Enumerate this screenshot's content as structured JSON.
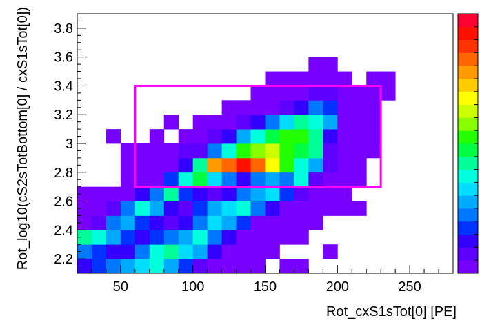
{
  "chart_data": {
    "type": "heatmap",
    "xlabel": "Rot_cxS1sTot[0]  [PE]",
    "ylabel": "Rot_log10(cS2sTotBottom[0] / cxS1sTot[0])",
    "xlim": [
      20,
      280
    ],
    "ylim": [
      2.1,
      3.9
    ],
    "x_ticks": [
      50,
      100,
      150,
      200,
      250
    ],
    "y_ticks": [
      2.2,
      2.4,
      2.6,
      2.8,
      3.0,
      3.2,
      3.4,
      3.6,
      3.8
    ],
    "x_tick_labels": [
      "50",
      "100",
      "150",
      "200",
      "250"
    ],
    "y_tick_labels": [
      "2.2",
      "2.4",
      "2.6",
      "2.8",
      "3",
      "3.2",
      "3.4",
      "3.6",
      "3.8"
    ],
    "bin_width_x": 10,
    "bin_width_y": 0.1,
    "x_bin_start": 20,
    "y_bin_start": 2.1,
    "levels": 20,
    "cells": [
      [
        20,
        2.1,
        3
      ],
      [
        30,
        2.1,
        4
      ],
      [
        40,
        2.1,
        5
      ],
      [
        50,
        2.1,
        6
      ],
      [
        60,
        2.1,
        7
      ],
      [
        70,
        2.1,
        8
      ],
      [
        80,
        2.1,
        6
      ],
      [
        90,
        2.1,
        4
      ],
      [
        100,
        2.1,
        2
      ],
      [
        110,
        2.1,
        1
      ],
      [
        120,
        2.1,
        1
      ],
      [
        130,
        2.1,
        1
      ],
      [
        140,
        2.1,
        1
      ],
      [
        160,
        2.1,
        1
      ],
      [
        170,
        2.1,
        1
      ],
      [
        20,
        2.2,
        5
      ],
      [
        30,
        2.2,
        4
      ],
      [
        40,
        2.2,
        3
      ],
      [
        50,
        2.2,
        3
      ],
      [
        60,
        2.2,
        5
      ],
      [
        70,
        2.2,
        8
      ],
      [
        80,
        2.2,
        9
      ],
      [
        90,
        2.2,
        7
      ],
      [
        100,
        2.2,
        6
      ],
      [
        110,
        2.2,
        3
      ],
      [
        120,
        2.2,
        1
      ],
      [
        130,
        2.2,
        1
      ],
      [
        140,
        2.2,
        1
      ],
      [
        150,
        2.2,
        1
      ],
      [
        190,
        2.2,
        1
      ],
      [
        20,
        2.3,
        9
      ],
      [
        30,
        2.3,
        8
      ],
      [
        40,
        2.3,
        6
      ],
      [
        50,
        2.3,
        4
      ],
      [
        60,
        2.3,
        3
      ],
      [
        70,
        2.3,
        4
      ],
      [
        80,
        2.3,
        5
      ],
      [
        90,
        2.3,
        6
      ],
      [
        100,
        2.3,
        8
      ],
      [
        110,
        2.3,
        5
      ],
      [
        120,
        2.3,
        3
      ],
      [
        130,
        2.3,
        1
      ],
      [
        140,
        2.3,
        1
      ],
      [
        150,
        2.3,
        1
      ],
      [
        160,
        2.3,
        1
      ],
      [
        170,
        2.3,
        1
      ],
      [
        20,
        2.4,
        1
      ],
      [
        30,
        2.4,
        2
      ],
      [
        40,
        2.4,
        5
      ],
      [
        50,
        2.4,
        6
      ],
      [
        60,
        2.4,
        4
      ],
      [
        70,
        2.4,
        3
      ],
      [
        80,
        2.4,
        2
      ],
      [
        90,
        2.4,
        3
      ],
      [
        100,
        2.4,
        5
      ],
      [
        110,
        2.4,
        7
      ],
      [
        120,
        2.4,
        6
      ],
      [
        130,
        2.4,
        4
      ],
      [
        140,
        2.4,
        1
      ],
      [
        150,
        2.4,
        1
      ],
      [
        160,
        2.4,
        1
      ],
      [
        170,
        2.4,
        1
      ],
      [
        180,
        2.4,
        1
      ],
      [
        20,
        2.5,
        1
      ],
      [
        30,
        2.5,
        1
      ],
      [
        40,
        2.5,
        2
      ],
      [
        50,
        2.5,
        5
      ],
      [
        60,
        2.5,
        8
      ],
      [
        70,
        2.5,
        6
      ],
      [
        80,
        2.5,
        3
      ],
      [
        90,
        2.5,
        2
      ],
      [
        100,
        2.5,
        4
      ],
      [
        110,
        2.5,
        6
      ],
      [
        120,
        2.5,
        7
      ],
      [
        130,
        2.5,
        8
      ],
      [
        140,
        2.5,
        5
      ],
      [
        150,
        2.5,
        3
      ],
      [
        160,
        2.5,
        1
      ],
      [
        170,
        2.5,
        1
      ],
      [
        180,
        2.5,
        1
      ],
      [
        190,
        2.5,
        1
      ],
      [
        200,
        2.5,
        1
      ],
      [
        210,
        2.5,
        1
      ],
      [
        20,
        2.6,
        1
      ],
      [
        30,
        2.6,
        1
      ],
      [
        40,
        2.6,
        1
      ],
      [
        50,
        2.6,
        1
      ],
      [
        60,
        2.6,
        3
      ],
      [
        70,
        2.6,
        5
      ],
      [
        80,
        2.6,
        9
      ],
      [
        90,
        2.6,
        4
      ],
      [
        100,
        2.6,
        3
      ],
      [
        110,
        2.6,
        2
      ],
      [
        120,
        2.6,
        3
      ],
      [
        130,
        2.6,
        5
      ],
      [
        140,
        2.6,
        6
      ],
      [
        150,
        2.6,
        7
      ],
      [
        160,
        2.6,
        4
      ],
      [
        170,
        2.6,
        2
      ],
      [
        180,
        2.6,
        1
      ],
      [
        190,
        2.6,
        1
      ],
      [
        200,
        2.6,
        1
      ],
      [
        50,
        2.7,
        1
      ],
      [
        60,
        2.7,
        1
      ],
      [
        70,
        2.7,
        1
      ],
      [
        80,
        2.7,
        4
      ],
      [
        90,
        2.7,
        8
      ],
      [
        100,
        2.7,
        10
      ],
      [
        110,
        2.7,
        7
      ],
      [
        120,
        2.7,
        5
      ],
      [
        130,
        2.7,
        3
      ],
      [
        140,
        2.7,
        5
      ],
      [
        150,
        2.7,
        6
      ],
      [
        160,
        2.7,
        5
      ],
      [
        170,
        2.7,
        8
      ],
      [
        180,
        2.7,
        2
      ],
      [
        190,
        2.7,
        1
      ],
      [
        200,
        2.7,
        1
      ],
      [
        210,
        2.7,
        1
      ],
      [
        50,
        2.8,
        1
      ],
      [
        60,
        2.8,
        1
      ],
      [
        70,
        2.8,
        1
      ],
      [
        80,
        2.8,
        1
      ],
      [
        90,
        2.8,
        3
      ],
      [
        100,
        2.8,
        9
      ],
      [
        110,
        2.8,
        16
      ],
      [
        120,
        2.8,
        17
      ],
      [
        130,
        2.8,
        19
      ],
      [
        140,
        2.8,
        17
      ],
      [
        150,
        2.8,
        14
      ],
      [
        160,
        2.8,
        11
      ],
      [
        170,
        2.8,
        8
      ],
      [
        180,
        2.8,
        6
      ],
      [
        190,
        2.8,
        2
      ],
      [
        200,
        2.8,
        1
      ],
      [
        210,
        2.8,
        1
      ],
      [
        50,
        2.9,
        1
      ],
      [
        60,
        2.9,
        1
      ],
      [
        70,
        2.9,
        1
      ],
      [
        80,
        2.9,
        1
      ],
      [
        90,
        2.9,
        2
      ],
      [
        100,
        2.9,
        2
      ],
      [
        110,
        2.9,
        5
      ],
      [
        120,
        2.9,
        8
      ],
      [
        130,
        2.9,
        11
      ],
      [
        140,
        2.9,
        12
      ],
      [
        150,
        2.9,
        13
      ],
      [
        160,
        2.9,
        11
      ],
      [
        170,
        2.9,
        10
      ],
      [
        180,
        2.9,
        9
      ],
      [
        190,
        2.9,
        2
      ],
      [
        200,
        2.9,
        1
      ],
      [
        210,
        2.9,
        1
      ],
      [
        220,
        2.9,
        1
      ],
      [
        40,
        3.0,
        1
      ],
      [
        70,
        3.0,
        1
      ],
      [
        90,
        3.0,
        1
      ],
      [
        100,
        3.0,
        1
      ],
      [
        110,
        3.0,
        2
      ],
      [
        120,
        3.0,
        3
      ],
      [
        130,
        3.0,
        6
      ],
      [
        140,
        3.0,
        8
      ],
      [
        150,
        3.0,
        10
      ],
      [
        160,
        3.0,
        11
      ],
      [
        170,
        3.0,
        11
      ],
      [
        180,
        3.0,
        9
      ],
      [
        190,
        3.0,
        3
      ],
      [
        200,
        3.0,
        1
      ],
      [
        210,
        3.0,
        1
      ],
      [
        220,
        3.0,
        1
      ],
      [
        80,
        3.1,
        1
      ],
      [
        100,
        3.1,
        1
      ],
      [
        110,
        3.1,
        1
      ],
      [
        120,
        3.1,
        1
      ],
      [
        130,
        3.1,
        2
      ],
      [
        140,
        3.1,
        3
      ],
      [
        150,
        3.1,
        5
      ],
      [
        160,
        3.1,
        7
      ],
      [
        170,
        3.1,
        9
      ],
      [
        180,
        3.1,
        8
      ],
      [
        190,
        3.1,
        6
      ],
      [
        200,
        3.1,
        1
      ],
      [
        210,
        3.1,
        1
      ],
      [
        220,
        3.1,
        1
      ],
      [
        120,
        3.2,
        1
      ],
      [
        130,
        3.2,
        1
      ],
      [
        140,
        3.2,
        1
      ],
      [
        150,
        3.2,
        1
      ],
      [
        160,
        3.2,
        2
      ],
      [
        170,
        3.2,
        3
      ],
      [
        180,
        3.2,
        5
      ],
      [
        190,
        3.2,
        4
      ],
      [
        200,
        3.2,
        1
      ],
      [
        210,
        3.2,
        1
      ],
      [
        220,
        3.2,
        1
      ],
      [
        140,
        3.3,
        1
      ],
      [
        150,
        3.3,
        1
      ],
      [
        160,
        3.3,
        1
      ],
      [
        170,
        3.3,
        1
      ],
      [
        180,
        3.3,
        2
      ],
      [
        190,
        3.3,
        2
      ],
      [
        200,
        3.3,
        1
      ],
      [
        210,
        3.3,
        1
      ],
      [
        220,
        3.3,
        1
      ],
      [
        230,
        3.3,
        1
      ],
      [
        150,
        3.4,
        1
      ],
      [
        160,
        3.4,
        1
      ],
      [
        170,
        3.4,
        1
      ],
      [
        180,
        3.4,
        1
      ],
      [
        190,
        3.4,
        1
      ],
      [
        200,
        3.4,
        1
      ],
      [
        220,
        3.4,
        1
      ],
      [
        230,
        3.4,
        1
      ],
      [
        180,
        3.5,
        1
      ],
      [
        190,
        3.5,
        1
      ]
    ],
    "cut_box": {
      "x": [
        60,
        230
      ],
      "y": [
        2.7,
        3.4
      ],
      "color": "#ff00ff"
    },
    "palette": [
      "#7700ff",
      "#5d00ff",
      "#3300ff",
      "#0033ff",
      "#0077ff",
      "#00aaff",
      "#00ddff",
      "#00ffdd",
      "#00ff99",
      "#00ff44",
      "#22ff00",
      "#88ff00",
      "#ccff00",
      "#ffff00",
      "#ffcc00",
      "#ff9900",
      "#ff6600",
      "#ff3300",
      "#ff1100",
      "#ff0033"
    ],
    "grid": false,
    "legend": "colorbar-right"
  }
}
